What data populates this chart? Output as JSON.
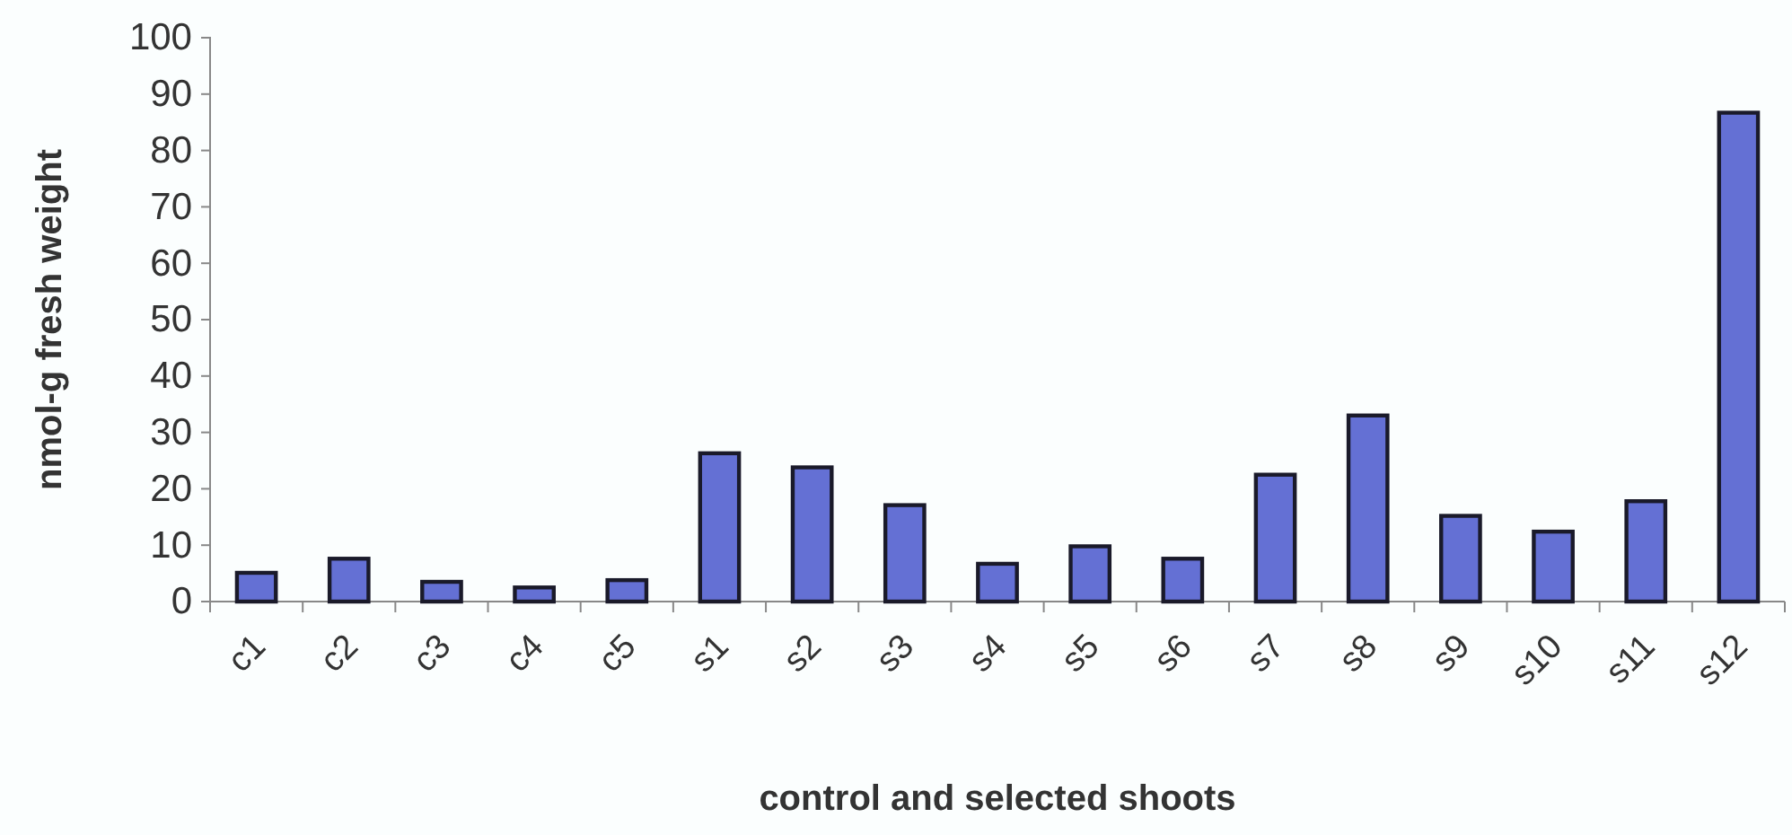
{
  "chart_data": {
    "type": "bar",
    "xlabel": "control and selected shoots",
    "ylabel": "nmol-g fresh weight",
    "categories": [
      "c1",
      "c2",
      "c3",
      "c4",
      "c5",
      "s1",
      "s2",
      "s3",
      "s4",
      "s5",
      "s6",
      "s7",
      "s8",
      "s9",
      "s10",
      "s11",
      "s12"
    ],
    "series": [
      {
        "color": "#6470d4",
        "values": [
          5.1,
          7.6,
          3.5,
          2.5,
          3.8,
          26.3,
          23.8,
          17.1,
          6.7,
          9.8,
          7.6,
          22.5,
          33,
          15.2,
          12.4,
          17.8,
          86.7
        ]
      }
    ],
    "ylim": [
      0,
      100
    ],
    "yticks": [
      0,
      10,
      20,
      30,
      40,
      50,
      60,
      70,
      80,
      90,
      100
    ]
  }
}
